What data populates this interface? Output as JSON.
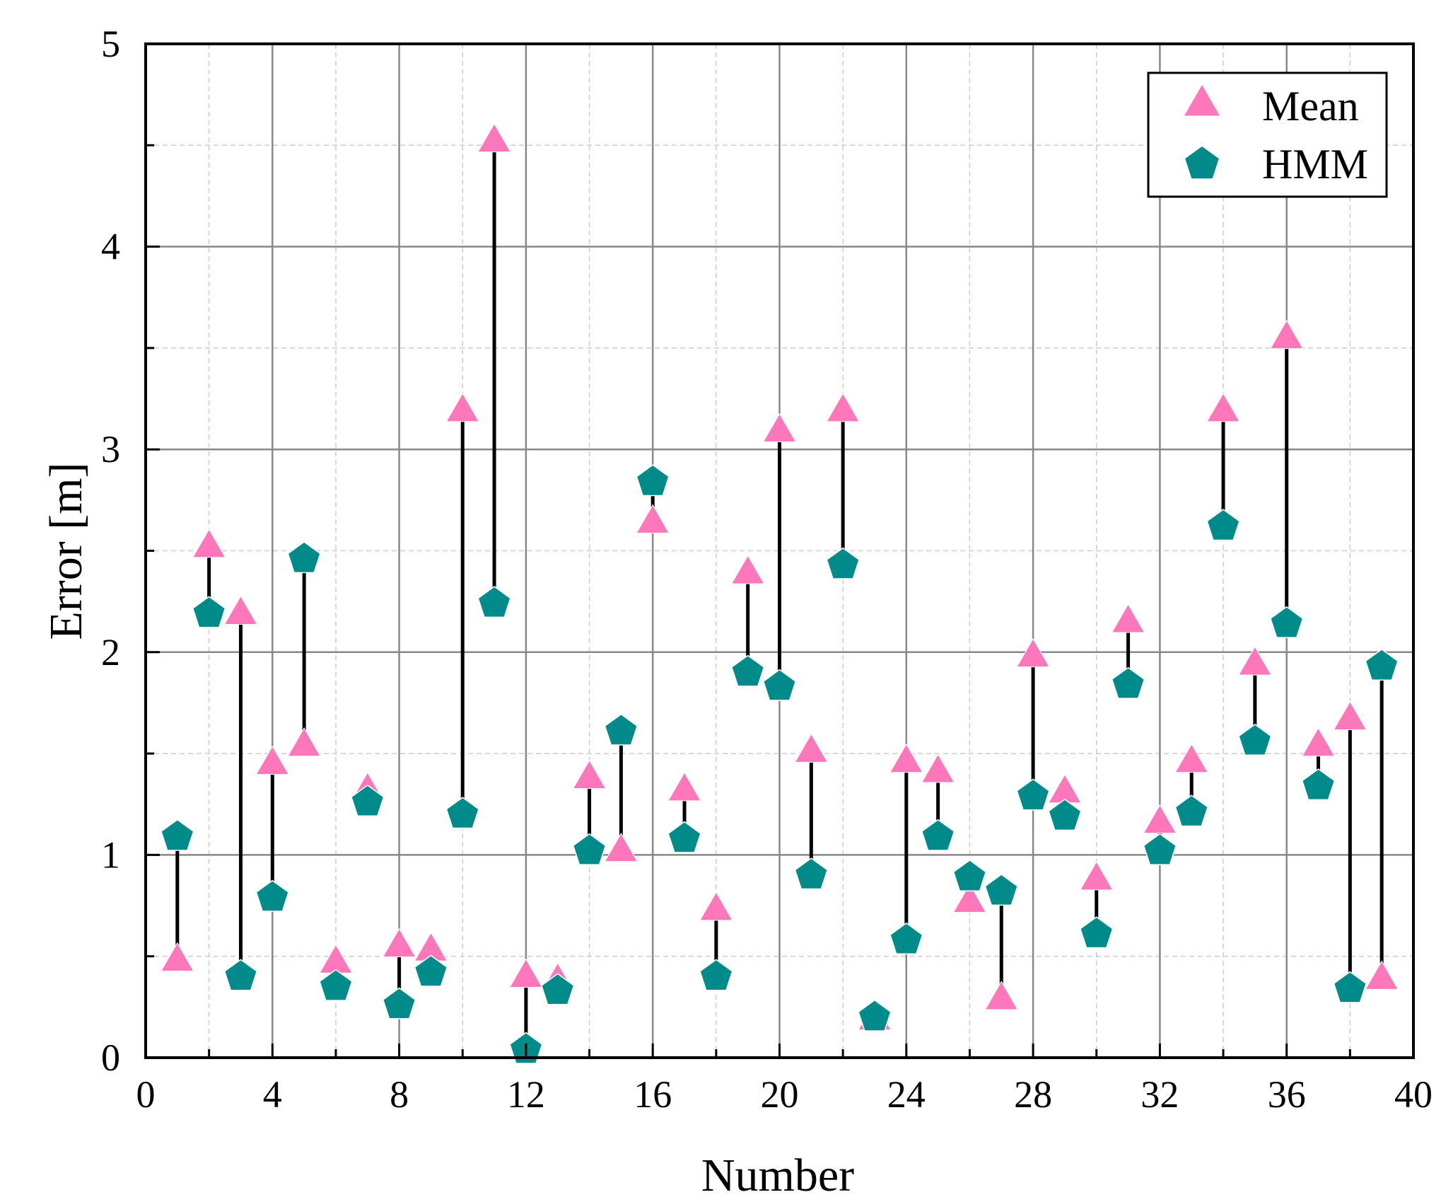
{
  "chart_data": {
    "type": "scatter",
    "title": "",
    "xlabel": "Number",
    "ylabel": "Error [m]",
    "xlim": [
      0,
      40
    ],
    "ylim": [
      0,
      5
    ],
    "xticks": [
      0,
      4,
      8,
      12,
      16,
      20,
      24,
      28,
      32,
      36,
      40
    ],
    "yticks": [
      0,
      1,
      2,
      3,
      4,
      5
    ],
    "grid": true,
    "legend_position": "top-right",
    "x": [
      1,
      2,
      3,
      4,
      5,
      6,
      7,
      8,
      9,
      10,
      11,
      12,
      13,
      14,
      15,
      16,
      17,
      18,
      19,
      20,
      21,
      22,
      23,
      24,
      25,
      26,
      27,
      28,
      29,
      30,
      31,
      32,
      33,
      34,
      35,
      36,
      37,
      38,
      39
    ],
    "series": [
      {
        "name": "Mean",
        "marker": "triangle",
        "color": "#ff77bb",
        "values": [
          0.48,
          2.52,
          2.19,
          1.45,
          1.54,
          0.47,
          1.32,
          0.55,
          0.53,
          3.19,
          4.52,
          0.4,
          0.38,
          1.38,
          1.02,
          2.64,
          1.32,
          0.73,
          2.39,
          3.09,
          1.51,
          3.19,
          0.19,
          1.46,
          1.41,
          0.77,
          0.29,
          1.98,
          1.31,
          0.88,
          2.15,
          1.16,
          1.46,
          3.19,
          1.94,
          3.55,
          1.54,
          1.67,
          0.39
        ]
      },
      {
        "name": "HMM",
        "marker": "pentagon",
        "color": "#008b8b",
        "values": [
          1.09,
          2.19,
          0.4,
          0.79,
          2.46,
          0.35,
          1.26,
          0.26,
          0.42,
          1.2,
          2.24,
          0.04,
          0.33,
          1.02,
          1.61,
          2.84,
          1.08,
          0.4,
          1.9,
          1.83,
          0.9,
          2.43,
          0.2,
          0.58,
          1.09,
          0.89,
          0.82,
          1.29,
          1.19,
          0.61,
          1.84,
          1.02,
          1.21,
          2.62,
          1.56,
          2.14,
          1.34,
          0.34,
          1.93
        ]
      }
    ],
    "connector_color": "#000000"
  }
}
